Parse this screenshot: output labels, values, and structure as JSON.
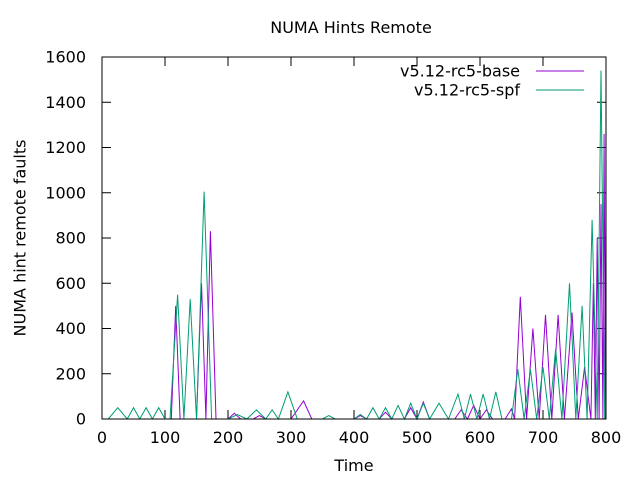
{
  "chart_data": {
    "type": "line",
    "title": "NUMA Hints Remote",
    "xlabel": "Time",
    "ylabel": "NUMA hint remote faults",
    "xlim": [
      0,
      800
    ],
    "ylim": [
      0,
      1600
    ],
    "xticks": [
      "0",
      "100",
      "200",
      "300",
      "400",
      "500",
      "600",
      "700",
      "800"
    ],
    "yticks": [
      "0",
      "200",
      "400",
      "600",
      "800",
      "1000",
      "1200",
      "1400",
      "1600"
    ],
    "legend_position": "top-right",
    "grid": false,
    "series": [
      {
        "name": "v5.12-rc5-base",
        "color": "#9400D3",
        "points": [
          [
            0,
            0
          ],
          [
            110,
            0
          ],
          [
            117,
            500
          ],
          [
            124,
            0
          ],
          [
            150,
            0
          ],
          [
            158,
            600
          ],
          [
            165,
            0
          ],
          [
            172,
            830
          ],
          [
            181,
            0
          ],
          [
            200,
            0
          ],
          [
            210,
            25
          ],
          [
            220,
            0
          ],
          [
            240,
            0
          ],
          [
            250,
            15
          ],
          [
            260,
            0
          ],
          [
            300,
            0
          ],
          [
            320,
            80
          ],
          [
            333,
            0
          ],
          [
            400,
            0
          ],
          [
            410,
            15
          ],
          [
            420,
            0
          ],
          [
            440,
            0
          ],
          [
            450,
            30
          ],
          [
            460,
            0
          ],
          [
            480,
            0
          ],
          [
            490,
            50
          ],
          [
            500,
            0
          ],
          [
            510,
            75
          ],
          [
            520,
            0
          ],
          [
            560,
            0
          ],
          [
            570,
            40
          ],
          [
            580,
            0
          ],
          [
            590,
            60
          ],
          [
            600,
            0
          ],
          [
            610,
            40
          ],
          [
            620,
            0
          ],
          [
            640,
            0
          ],
          [
            650,
            45
          ],
          [
            655,
            0
          ],
          [
            664,
            540
          ],
          [
            674,
            0
          ],
          [
            684,
            400
          ],
          [
            694,
            0
          ],
          [
            704,
            460
          ],
          [
            714,
            0
          ],
          [
            724,
            460
          ],
          [
            734,
            0
          ],
          [
            746,
            470
          ],
          [
            756,
            0
          ],
          [
            766,
            230
          ],
          [
            776,
            0
          ],
          [
            780,
            600
          ],
          [
            783,
            0
          ],
          [
            786,
            800
          ],
          [
            789,
            0
          ],
          [
            792,
            950
          ],
          [
            795,
            0
          ],
          [
            797,
            1260
          ],
          [
            799,
            0
          ],
          [
            800,
            1300
          ]
        ]
      },
      {
        "name": "v5.12-rc5-spf",
        "color": "#009E73",
        "points": [
          [
            0,
            0
          ],
          [
            10,
            0
          ],
          [
            25,
            50
          ],
          [
            40,
            0
          ],
          [
            50,
            50
          ],
          [
            60,
            0
          ],
          [
            70,
            50
          ],
          [
            80,
            0
          ],
          [
            90,
            50
          ],
          [
            100,
            0
          ],
          [
            108,
            0
          ],
          [
            120,
            550
          ],
          [
            130,
            0
          ],
          [
            140,
            530
          ],
          [
            150,
            0
          ],
          [
            162,
            1005
          ],
          [
            174,
            0
          ],
          [
            200,
            0
          ],
          [
            215,
            20
          ],
          [
            230,
            0
          ],
          [
            245,
            40
          ],
          [
            260,
            0
          ],
          [
            270,
            40
          ],
          [
            280,
            0
          ],
          [
            295,
            120
          ],
          [
            310,
            0
          ],
          [
            350,
            0
          ],
          [
            360,
            15
          ],
          [
            370,
            0
          ],
          [
            400,
            0
          ],
          [
            410,
            20
          ],
          [
            420,
            0
          ],
          [
            430,
            50
          ],
          [
            440,
            0
          ],
          [
            450,
            50
          ],
          [
            460,
            0
          ],
          [
            470,
            60
          ],
          [
            480,
            0
          ],
          [
            490,
            70
          ],
          [
            500,
            0
          ],
          [
            510,
            70
          ],
          [
            520,
            0
          ],
          [
            535,
            70
          ],
          [
            550,
            0
          ],
          [
            565,
            110
          ],
          [
            575,
            0
          ],
          [
            585,
            110
          ],
          [
            595,
            0
          ],
          [
            605,
            110
          ],
          [
            615,
            0
          ],
          [
            625,
            120
          ],
          [
            635,
            0
          ],
          [
            650,
            0
          ],
          [
            660,
            220
          ],
          [
            670,
            0
          ],
          [
            680,
            220
          ],
          [
            690,
            0
          ],
          [
            700,
            230
          ],
          [
            710,
            0
          ],
          [
            720,
            310
          ],
          [
            730,
            0
          ],
          [
            742,
            600
          ],
          [
            752,
            0
          ],
          [
            762,
            500
          ],
          [
            770,
            0
          ],
          [
            778,
            880
          ],
          [
            786,
            0
          ],
          [
            792,
            1540
          ],
          [
            798,
            0
          ],
          [
            800,
            130
          ]
        ]
      }
    ]
  }
}
